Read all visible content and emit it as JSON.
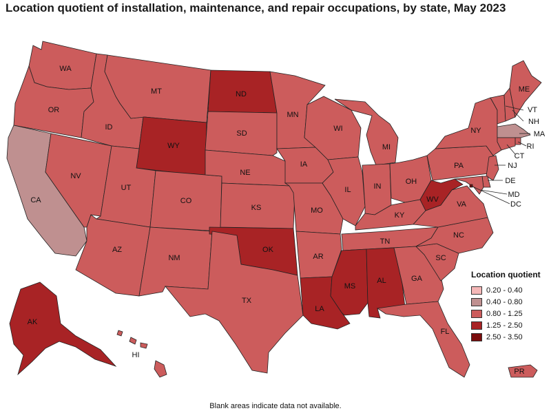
{
  "title": "Location quotient of installation, maintenance, and repair occupations, by state, May 2023",
  "footnote": "Blank areas indicate data not available.",
  "legend": {
    "title": "Location quotient",
    "classes": [
      {
        "label": "0.20 - 0.40",
        "color": "#f5b7b7"
      },
      {
        "label": "0.40 - 0.80",
        "color": "#bf9090"
      },
      {
        "label": "0.80 - 1.25",
        "color": "#cc5c5c"
      },
      {
        "label": "1.25 - 2.50",
        "color": "#a82325"
      },
      {
        "label": "2.50 - 3.50",
        "color": "#7a0c0c"
      }
    ]
  },
  "states": [
    {
      "abbr": "WA",
      "class": 2
    },
    {
      "abbr": "OR",
      "class": 2
    },
    {
      "abbr": "CA",
      "class": 1
    },
    {
      "abbr": "ID",
      "class": 2
    },
    {
      "abbr": "NV",
      "class": 2
    },
    {
      "abbr": "MT",
      "class": 2
    },
    {
      "abbr": "WY",
      "class": 3
    },
    {
      "abbr": "UT",
      "class": 2
    },
    {
      "abbr": "AZ",
      "class": 2
    },
    {
      "abbr": "CO",
      "class": 2
    },
    {
      "abbr": "NM",
      "class": 2
    },
    {
      "abbr": "ND",
      "class": 3
    },
    {
      "abbr": "SD",
      "class": 2
    },
    {
      "abbr": "NE",
      "class": 2
    },
    {
      "abbr": "KS",
      "class": 2
    },
    {
      "abbr": "OK",
      "class": 3
    },
    {
      "abbr": "TX",
      "class": 2
    },
    {
      "abbr": "MN",
      "class": 2
    },
    {
      "abbr": "IA",
      "class": 2
    },
    {
      "abbr": "MO",
      "class": 2
    },
    {
      "abbr": "AR",
      "class": 2
    },
    {
      "abbr": "LA",
      "class": 3
    },
    {
      "abbr": "WI",
      "class": 2
    },
    {
      "abbr": "IL",
      "class": 2
    },
    {
      "abbr": "MI",
      "class": 2
    },
    {
      "abbr": "IN",
      "class": 2
    },
    {
      "abbr": "OH",
      "class": 2
    },
    {
      "abbr": "KY",
      "class": 2
    },
    {
      "abbr": "TN",
      "class": 2
    },
    {
      "abbr": "MS",
      "class": 3
    },
    {
      "abbr": "AL",
      "class": 3
    },
    {
      "abbr": "GA",
      "class": 2
    },
    {
      "abbr": "FL",
      "class": 2
    },
    {
      "abbr": "SC",
      "class": 2
    },
    {
      "abbr": "NC",
      "class": 2
    },
    {
      "abbr": "VA",
      "class": 2
    },
    {
      "abbr": "WV",
      "class": 3
    },
    {
      "abbr": "PA",
      "class": 2
    },
    {
      "abbr": "NY",
      "class": 2
    },
    {
      "abbr": "VT",
      "class": 2
    },
    {
      "abbr": "NH",
      "class": 2
    },
    {
      "abbr": "ME",
      "class": 2
    },
    {
      "abbr": "MA",
      "class": 1
    },
    {
      "abbr": "RI",
      "class": 2
    },
    {
      "abbr": "CT",
      "class": 2
    },
    {
      "abbr": "NJ",
      "class": 2
    },
    {
      "abbr": "DE",
      "class": 2
    },
    {
      "abbr": "MD",
      "class": 2
    },
    {
      "abbr": "DC",
      "class": 4
    },
    {
      "abbr": "AK",
      "class": 3
    },
    {
      "abbr": "HI",
      "class": 2
    },
    {
      "abbr": "PR",
      "class": 2
    }
  ]
}
